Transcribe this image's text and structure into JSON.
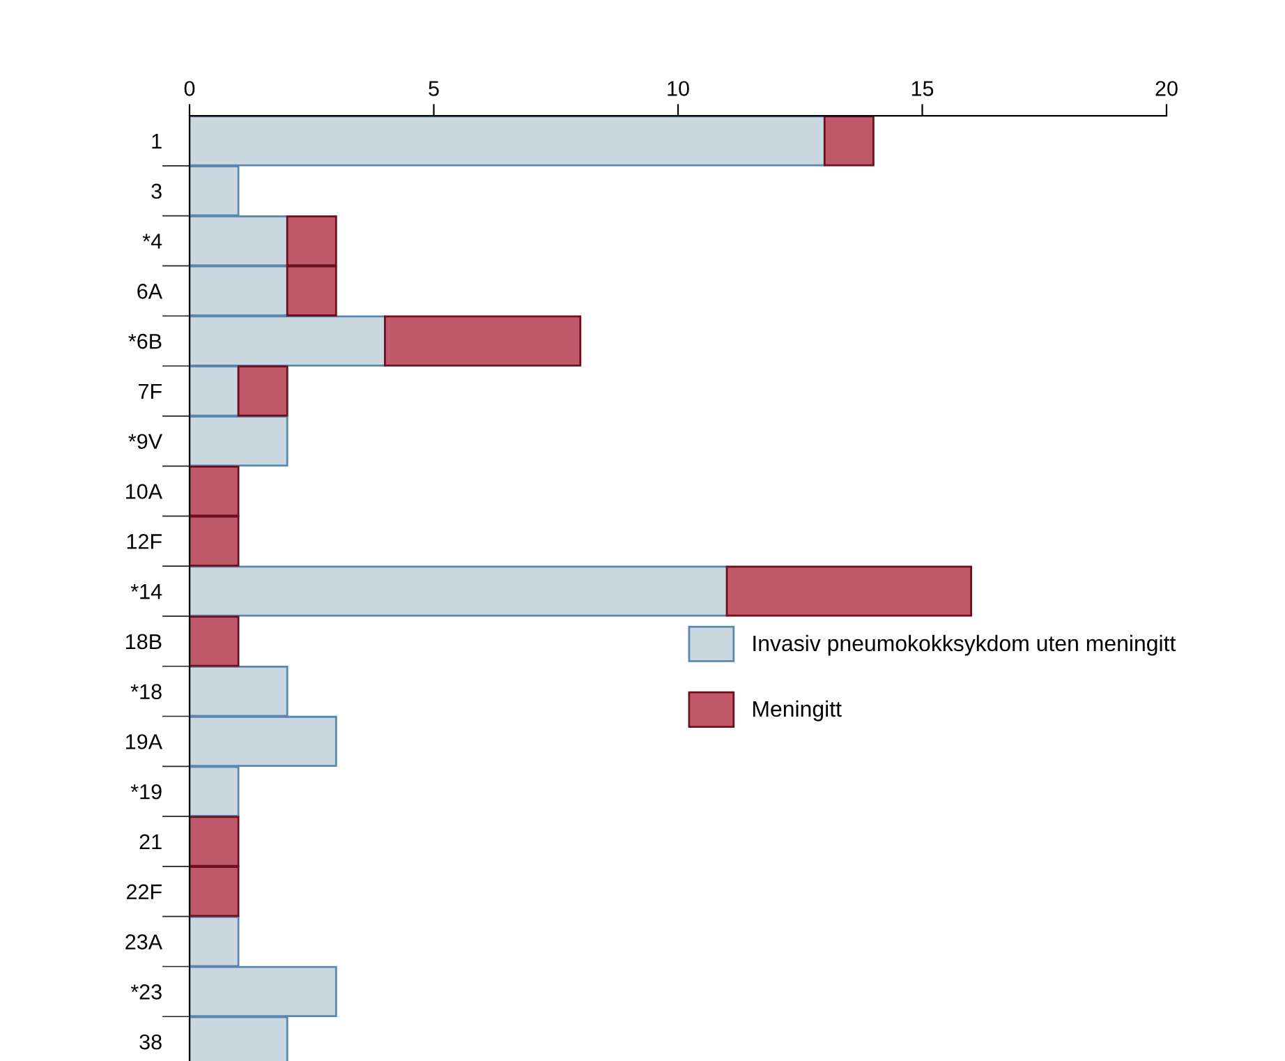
{
  "chart_data": {
    "type": "bar",
    "orientation": "horizontal",
    "stacked": true,
    "categories": [
      "1",
      "3",
      "*4",
      "6A",
      "*6B",
      "7F",
      "*9V",
      "10A",
      "12F",
      "*14",
      "18B",
      "*18",
      "19A",
      "*19",
      "21",
      "22F",
      "23A",
      "*23",
      "38"
    ],
    "series": [
      {
        "name": "Invasiv pneumokokksykdom uten meningitt",
        "color": "#cbd8e0",
        "values": [
          13,
          1,
          2,
          2,
          4,
          1,
          2,
          0,
          0,
          11,
          0,
          2,
          3,
          1,
          0,
          0,
          1,
          3,
          2
        ]
      },
      {
        "name": "Meningitt",
        "color": "#c0596a",
        "values": [
          1,
          0,
          1,
          1,
          4,
          1,
          0,
          1,
          1,
          5,
          1,
          0,
          0,
          0,
          1,
          1,
          0,
          0,
          0
        ]
      }
    ],
    "xlim": [
      0,
      20
    ],
    "xticks": [
      0,
      5,
      10,
      15,
      20
    ],
    "grid": false,
    "legend": "right"
  }
}
